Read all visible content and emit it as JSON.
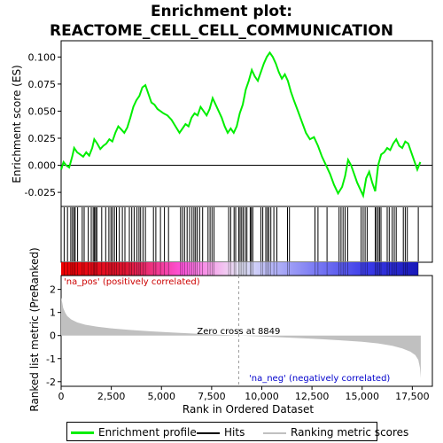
{
  "chart_data": [
    {
      "type": "line",
      "title_lines": [
        "Enrichment plot:",
        "REACTOME_CELL_CELL_COMMUNICATION"
      ],
      "ylabel": "Enrichment score (ES)",
      "xlim": [
        0,
        18500
      ],
      "ylim": [
        -0.038,
        0.115
      ],
      "yticks": [
        -0.025,
        0.0,
        0.025,
        0.05,
        0.075,
        0.1
      ],
      "ytick_labels": [
        "-0.025",
        "0.000",
        "0.025",
        "0.050",
        "0.075",
        "0.100"
      ],
      "series": [
        {
          "name": "Enrichment profile",
          "color": "#00ee00",
          "x": [
            0,
            120,
            250,
            400,
            550,
            650,
            800,
            950,
            1100,
            1250,
            1400,
            1550,
            1650,
            1800,
            1950,
            2100,
            2250,
            2400,
            2550,
            2700,
            2850,
            3000,
            3150,
            3300,
            3450,
            3600,
            3750,
            3900,
            4050,
            4200,
            4350,
            4500,
            4650,
            4800,
            4950,
            5100,
            5300,
            5500,
            5700,
            5900,
            6050,
            6200,
            6350,
            6500,
            6650,
            6800,
            6950,
            7100,
            7250,
            7400,
            7550,
            7700,
            7850,
            8000,
            8150,
            8300,
            8450,
            8600,
            8750,
            8900,
            9050,
            9200,
            9350,
            9500,
            9650,
            9800,
            9950,
            10100,
            10250,
            10400,
            10550,
            10700,
            10850,
            11000,
            11150,
            11300,
            11450,
            11600,
            11800,
            12000,
            12200,
            12400,
            12600,
            12800,
            13000,
            13200,
            13400,
            13600,
            13800,
            14000,
            14150,
            14300,
            14450,
            14600,
            14750,
            14900,
            15050,
            15200,
            15350,
            15500,
            15650,
            15800,
            15950,
            16100,
            16250,
            16400,
            16550,
            16700,
            16850,
            17000,
            17150,
            17300,
            17450,
            17600,
            17750,
            17900
          ],
          "values": [
            -0.004,
            0.003,
            0.0,
            -0.002,
            0.008,
            0.016,
            0.012,
            0.01,
            0.008,
            0.012,
            0.009,
            0.016,
            0.024,
            0.02,
            0.015,
            0.018,
            0.02,
            0.024,
            0.022,
            0.03,
            0.036,
            0.033,
            0.03,
            0.035,
            0.044,
            0.054,
            0.06,
            0.064,
            0.072,
            0.074,
            0.066,
            0.058,
            0.056,
            0.052,
            0.05,
            0.048,
            0.046,
            0.042,
            0.036,
            0.03,
            0.034,
            0.038,
            0.036,
            0.044,
            0.048,
            0.046,
            0.054,
            0.05,
            0.046,
            0.052,
            0.062,
            0.056,
            0.05,
            0.044,
            0.036,
            0.03,
            0.034,
            0.03,
            0.036,
            0.048,
            0.056,
            0.07,
            0.078,
            0.088,
            0.082,
            0.078,
            0.086,
            0.094,
            0.1,
            0.104,
            0.1,
            0.094,
            0.086,
            0.08,
            0.084,
            0.078,
            0.068,
            0.06,
            0.05,
            0.04,
            0.03,
            0.024,
            0.026,
            0.018,
            0.008,
            0.0,
            -0.008,
            -0.018,
            -0.026,
            -0.02,
            -0.01,
            0.005,
            0.0,
            -0.008,
            -0.016,
            -0.022,
            -0.028,
            -0.012,
            -0.006,
            -0.016,
            -0.024,
            0.0,
            0.01,
            0.012,
            0.016,
            0.014,
            0.02,
            0.024,
            0.018,
            0.016,
            0.022,
            0.02,
            0.012,
            0.004,
            -0.004,
            0.003
          ]
        }
      ]
    },
    {
      "type": "scatter",
      "name": "Hits",
      "color": "#000000",
      "xlim": [
        0,
        18500
      ],
      "x": [
        150,
        320,
        480,
        560,
        640,
        700,
        820,
        1050,
        1150,
        1350,
        1500,
        1600,
        1660,
        1720,
        1780,
        2020,
        2220,
        2380,
        2480,
        2560,
        2660,
        2760,
        2900,
        3050,
        3180,
        3400,
        3520,
        3640,
        3780,
        3880,
        3960,
        4080,
        4200,
        4600,
        4720,
        4950,
        5150,
        5350,
        5950,
        6050,
        6150,
        6280,
        6400,
        6520,
        6620,
        6700,
        6780,
        6900,
        7050,
        7320,
        7420,
        7520,
        7620,
        8350,
        8450,
        8620,
        8700,
        8850,
        8920,
        9000,
        9080,
        9180,
        9260,
        9420,
        9480,
        9550,
        9950,
        10050,
        10200,
        10280,
        10350,
        10450,
        10600,
        10750,
        11280,
        11380,
        12650,
        12800,
        13250,
        13850,
        13950,
        14050,
        14150,
        14280,
        14950,
        15050,
        15150,
        15250,
        15650,
        15720,
        15800,
        15870,
        15940,
        16250,
        16350,
        16500,
        16600,
        16700,
        17050,
        17150,
        17250,
        17800
      ]
    },
    {
      "type": "area",
      "ylabel": "Ranked list metric (PreRanked)",
      "xlabel": "Rank in Ordered Dataset",
      "xlim": [
        0,
        18500
      ],
      "ylim": [
        -2.2,
        2.6
      ],
      "xticks": [
        0,
        2500,
        5000,
        7500,
        10000,
        12500,
        15000,
        17500
      ],
      "xtick_labels": [
        "0",
        "2,500",
        "5,000",
        "7,500",
        "10,000",
        "12,500",
        "15,000",
        "17,500"
      ],
      "yticks": [
        -2,
        -1,
        0,
        1,
        2
      ],
      "ytick_labels": [
        "-2",
        "-1",
        "0",
        "1",
        "2"
      ],
      "series": [
        {
          "name": "Ranking metric scores",
          "color": "#c0c0c0",
          "x": [
            0,
            50,
            100,
            200,
            300,
            500,
            800,
            1200,
            1800,
            2500,
            3500,
            4500,
            5500,
            6500,
            7500,
            8849,
            10000,
            11000,
            12000,
            13000,
            14000,
            15000,
            15800,
            16500,
            17000,
            17400,
            17650,
            17800,
            17880,
            17920
          ],
          "values": [
            1.65,
            1.45,
            1.2,
            1.0,
            0.85,
            0.7,
            0.57,
            0.47,
            0.38,
            0.31,
            0.24,
            0.18,
            0.13,
            0.09,
            0.05,
            0.0,
            -0.04,
            -0.08,
            -0.12,
            -0.16,
            -0.21,
            -0.27,
            -0.34,
            -0.44,
            -0.56,
            -0.7,
            -0.85,
            -1.05,
            -1.4,
            -1.85
          ]
        }
      ],
      "annotations": {
        "pos_label": "'na_pos' (positively correlated)",
        "neg_label": "'na_neg' (negatively correlated)",
        "zero_cross_label": "Zero cross at 8849",
        "zero_cross": 8849
      }
    }
  ],
  "legend": {
    "profile_label": "Enrichment profile",
    "hits_label": "Hits",
    "metric_label": "Ranking metric scores",
    "profile_color": "#00ee00",
    "hits_color": "#000000",
    "metric_color": "#c0c0c0"
  }
}
